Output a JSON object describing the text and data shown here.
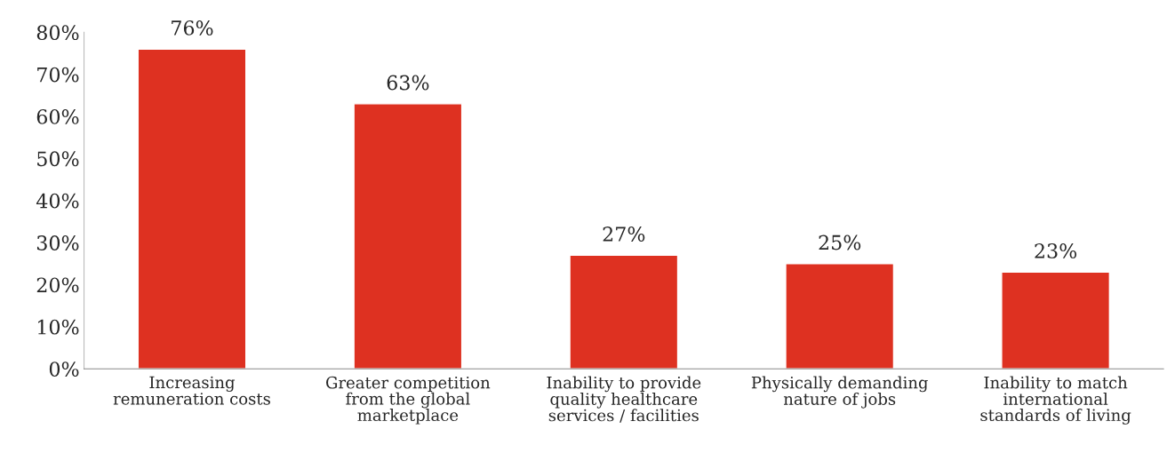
{
  "chart_data": {
    "type": "bar",
    "categories": [
      "Increasing\nremuneration costs",
      "Greater competition\nfrom the global\nmarketplace",
      "Inability to provide\nquality healthcare\nservices / facilities",
      "Physically demanding\nnature of jobs",
      "Inability to match\ninternational\nstandards of living"
    ],
    "values": [
      76,
      63,
      27,
      25,
      23
    ],
    "value_labels": [
      "76%",
      "63%",
      "27%",
      "25%",
      "23%"
    ],
    "color": "#de3121",
    "ylim": [
      0,
      80
    ],
    "yticks": [
      {
        "value": 0,
        "label": "0%"
      },
      {
        "value": 10,
        "label": "10%"
      },
      {
        "value": 20,
        "label": "20%"
      },
      {
        "value": 30,
        "label": "30%"
      },
      {
        "value": 40,
        "label": "40%"
      },
      {
        "value": 50,
        "label": "50%"
      },
      {
        "value": 60,
        "label": "60%"
      },
      {
        "value": 70,
        "label": "70%"
      },
      {
        "value": 80,
        "label": "80%"
      }
    ],
    "grid": false,
    "legend": false
  }
}
